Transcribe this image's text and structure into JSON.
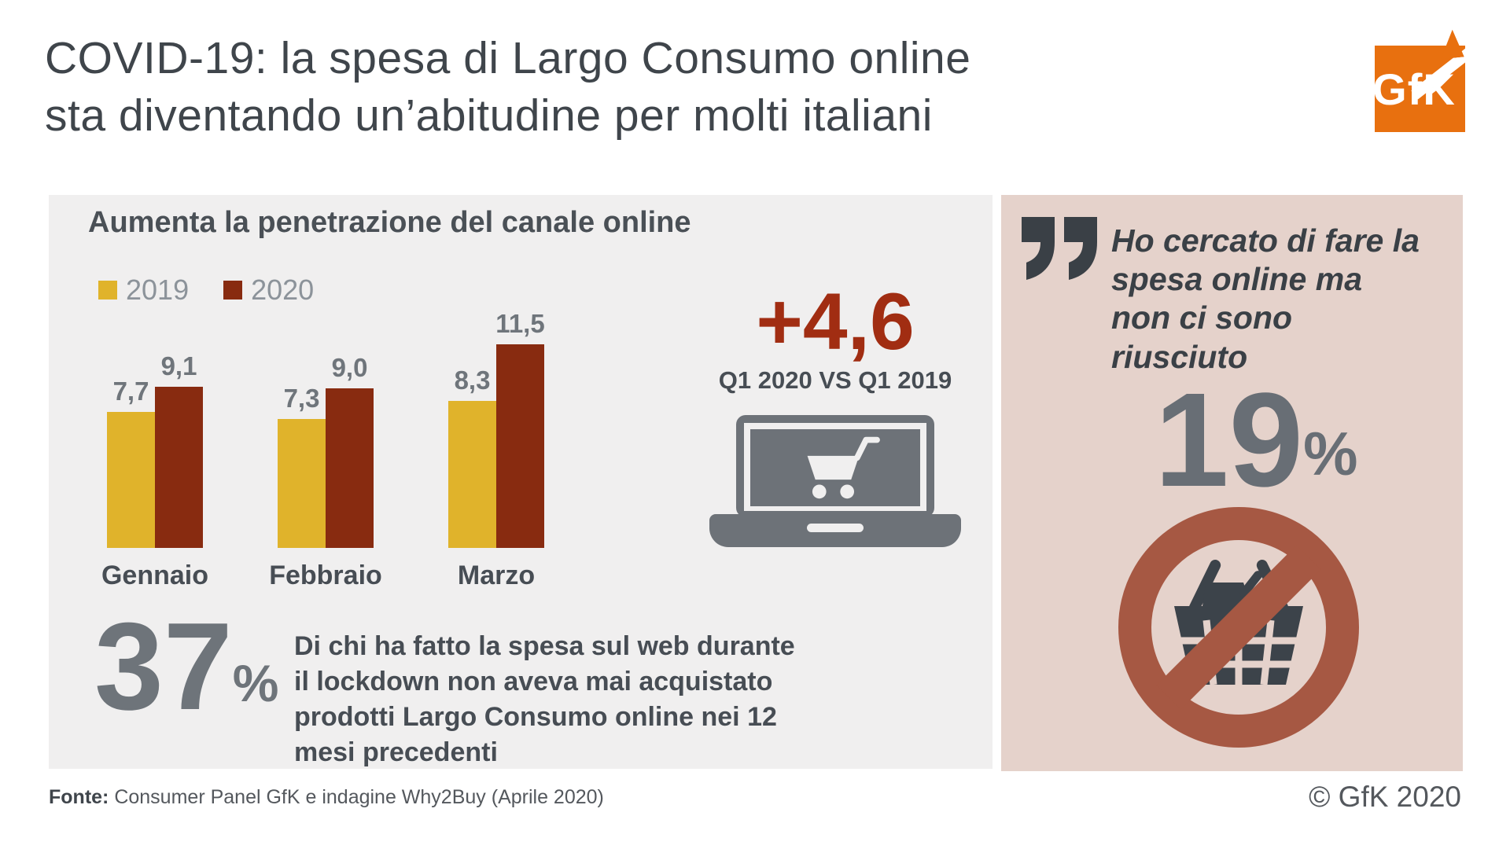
{
  "header": {
    "title_line1": "COVID-19: la spesa di Largo Consumo online",
    "title_line2": "sta diventando un’abitudine per molti italiani",
    "logo_text": "GfK"
  },
  "chart_data": {
    "type": "bar",
    "title": "Aumenta la penetrazione del canale online",
    "categories": [
      "Gennaio",
      "Febbraio",
      "Marzo"
    ],
    "series": [
      {
        "name": "2019",
        "color": "#e0b32b",
        "values": [
          7.7,
          7.3,
          8.3
        ]
      },
      {
        "name": "2020",
        "color": "#882b10",
        "values": [
          9.1,
          9.0,
          11.5
        ]
      }
    ],
    "ylim": [
      0,
      12
    ],
    "grid": false,
    "legend_position": "top-left",
    "value_labels": "above_bars_comma_decimal"
  },
  "left_panel": {
    "delta_value": "+4,6",
    "delta_caption": "Q1 2020 VS Q1 2019",
    "stat_value": "37",
    "stat_unit": "%",
    "stat_text": "Di chi ha fatto la spesa sul web durante il lockdown non aveva mai acquistato prodotti Largo Consumo online nei 12 mesi precedenti"
  },
  "right_panel": {
    "quote": "Ho cercato di fare la spesa online ma non ci sono riusciuto",
    "stat_value": "19",
    "stat_unit": "%"
  },
  "footer": {
    "source_label": "Fonte:",
    "source_text": " Consumer Panel GfK e indagine Why2Buy (Aprile 2020)",
    "copyright": "© GfK 2020"
  },
  "colors": {
    "accent_yellow": "#e0b32b",
    "accent_dark_red": "#882b10",
    "delta_red": "#a12d12",
    "logo_orange": "#e8700f",
    "panel_gray": "#f0efef",
    "panel_pink": "#e5d2cb",
    "prohibition_brown": "#a65843",
    "dark_text": "#474d54",
    "stat_gray": "#6e747a"
  }
}
